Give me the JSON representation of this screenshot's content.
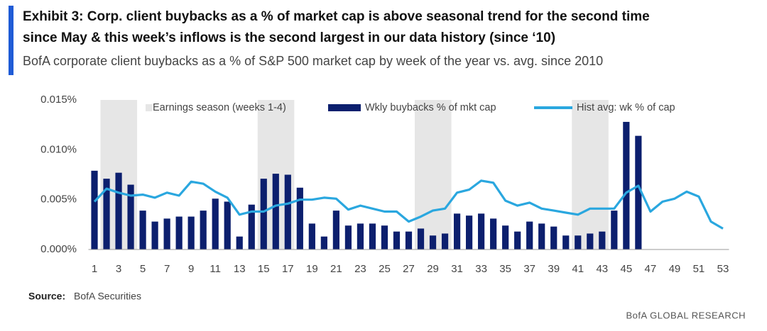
{
  "chart_data": {
    "type": "bar",
    "title": [
      "Exhibit 3: Corp. client buybacks as a % of market cap is above seasonal trend for the second time",
      "since May & this week’s inflows is the second largest in our data history (since ‘10)"
    ],
    "subtitle": "BofA corporate client buybacks as a % of S&P 500 market cap by week of the year vs. avg. since 2010",
    "categories": [
      "1",
      null,
      "3",
      null,
      "5",
      null,
      "7",
      null,
      "9",
      null,
      "11",
      null,
      "13",
      null,
      "15",
      null,
      "17",
      null,
      "19",
      null,
      "21",
      null,
      "23",
      null,
      "25",
      null,
      "27",
      null,
      "29",
      null,
      "31",
      null,
      "33",
      null,
      "35",
      null,
      "37",
      null,
      "39",
      null,
      "41",
      null,
      "43",
      null,
      "45",
      null,
      "47",
      null,
      "49",
      null,
      "51",
      null,
      "53"
    ],
    "ylim": [
      0,
      0.015
    ],
    "yticks": [
      {
        "value": 0,
        "label": "0.000%"
      },
      {
        "value": 0.005,
        "label": "0.005%"
      },
      {
        "value": 0.01,
        "label": "0.010%"
      },
      {
        "value": 0.015,
        "label": "0.015%"
      }
    ],
    "series": [
      {
        "name": "Earnings season (weeks 1-4)",
        "type": "band",
        "color": "#e6e6e6",
        "values": [
          null,
          0.015,
          0.015,
          0.015,
          null,
          null,
          null,
          null,
          null,
          null,
          null,
          null,
          null,
          null,
          0.015,
          0.015,
          0.015,
          null,
          null,
          null,
          null,
          null,
          null,
          null,
          null,
          null,
          null,
          0.015,
          0.015,
          0.015,
          null,
          null,
          null,
          null,
          null,
          null,
          null,
          null,
          null,
          null,
          0.015,
          0.015,
          0.015,
          null,
          null,
          null,
          null,
          null,
          null,
          null,
          null,
          null,
          null
        ]
      },
      {
        "name": "Wkly buybacks % of mkt cap",
        "type": "bar",
        "color": "#0c1f6e",
        "values": [
          0.0079,
          0.0071,
          0.0077,
          0.0065,
          0.0039,
          0.0028,
          0.0031,
          0.0033,
          0.0033,
          0.0039,
          0.0051,
          0.0048,
          0.0013,
          0.0045,
          0.0071,
          0.0076,
          0.0075,
          0.0062,
          0.0026,
          0.0013,
          0.0039,
          0.0024,
          0.0026,
          0.0026,
          0.0024,
          0.0018,
          0.0018,
          0.0021,
          0.0014,
          0.0016,
          0.0036,
          0.0034,
          0.0036,
          0.0031,
          0.0024,
          0.0018,
          0.0028,
          0.0026,
          0.0023,
          0.0014,
          0.0014,
          0.0016,
          0.0018,
          0.0039,
          0.0128,
          0.0114,
          null,
          null,
          null,
          null,
          null,
          null,
          null
        ]
      },
      {
        "name": "Hist avg: wk % of cap",
        "type": "line",
        "color": "#2aa7df",
        "values": [
          0.0048,
          0.0061,
          0.0057,
          0.0054,
          0.0055,
          0.0052,
          0.0057,
          0.0054,
          0.0068,
          0.0066,
          0.0058,
          0.0052,
          0.0035,
          0.0038,
          0.0038,
          0.0044,
          0.0046,
          0.005,
          0.005,
          0.0052,
          0.0051,
          0.004,
          0.0044,
          0.0041,
          0.0038,
          0.0038,
          0.0028,
          0.0033,
          0.0039,
          0.0041,
          0.0057,
          0.006,
          0.0069,
          0.0067,
          0.0049,
          0.0044,
          0.0047,
          0.0041,
          0.0039,
          0.0037,
          0.0035,
          0.0041,
          0.0041,
          0.0041,
          0.0057,
          0.0064,
          0.0038,
          0.0048,
          0.0051,
          0.0058,
          0.0053,
          0.0028,
          0.0021
        ]
      }
    ],
    "source_label": "Source:",
    "source": "BofA Securities",
    "footer": "BofA GLOBAL RESEARCH"
  }
}
